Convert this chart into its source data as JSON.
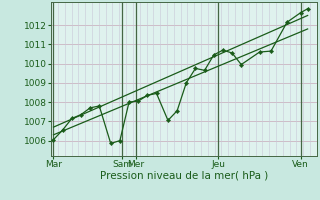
{
  "background_color": "#c8e8e0",
  "plot_bg_color": "#dff2ee",
  "grid_color_h": "#c8a8b8",
  "grid_color_v": "#c8c8d8",
  "line_color": "#1a5c1a",
  "days": [
    "Mar",
    "Sam",
    "Mer",
    "Jeu",
    "Ven"
  ],
  "day_x": [
    0.0,
    3.0,
    3.6,
    7.2,
    10.8
  ],
  "xlabel": "Pression niveau de la mer( hPa )",
  "ylim": [
    1005.2,
    1013.2
  ],
  "yticks": [
    1006,
    1007,
    1008,
    1009,
    1010,
    1011,
    1012
  ],
  "zigzag_x": [
    0.0,
    0.4,
    0.8,
    1.2,
    1.6,
    2.0,
    2.5,
    2.9,
    3.3,
    3.7,
    4.1,
    4.5,
    5.0,
    5.4,
    5.8,
    6.2,
    6.6,
    7.0,
    7.4,
    7.8,
    8.2,
    9.0,
    9.5,
    10.2,
    10.8,
    11.1
  ],
  "zigzag_y": [
    1006.05,
    1006.55,
    1007.15,
    1007.35,
    1007.7,
    1007.8,
    1005.85,
    1006.0,
    1008.0,
    1008.05,
    1008.35,
    1008.45,
    1007.05,
    1007.55,
    1009.0,
    1009.75,
    1009.65,
    1010.45,
    1010.7,
    1010.55,
    1009.95,
    1010.6,
    1010.65,
    1012.15,
    1012.65,
    1012.85
  ],
  "trend_x": [
    0.0,
    11.1
  ],
  "trend_y": [
    1006.3,
    1011.8
  ],
  "trend2_x": [
    0.0,
    11.1
  ],
  "trend2_y": [
    1006.7,
    1012.5
  ],
  "xlim": [
    -0.1,
    11.5
  ],
  "n_vgrid": 40,
  "figsize": [
    3.2,
    2.0
  ],
  "dpi": 100,
  "label_fontsize": 7.5,
  "tick_fontsize": 6.5
}
